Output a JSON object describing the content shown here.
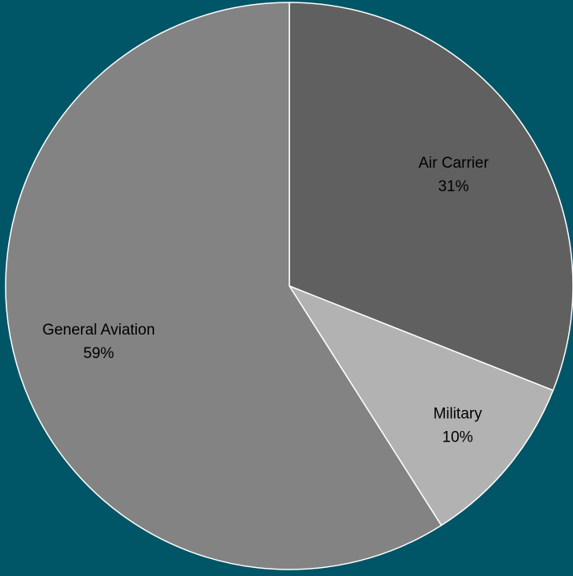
{
  "colors": {
    "background": "#005566",
    "slice_border": "#ffffff",
    "label_text": "#000000"
  },
  "chart_data": {
    "type": "pie",
    "title": "",
    "start_angle_deg": 0,
    "direction": "clockwise",
    "slices": [
      {
        "label": "Air Carrier",
        "value": 31,
        "value_label": "31%",
        "color": "#606060"
      },
      {
        "label": "Military",
        "value": 10,
        "value_label": "10%",
        "color": "#b2b2b2"
      },
      {
        "label": "General Aviation",
        "value": 59,
        "value_label": "59%",
        "color": "#838383"
      }
    ]
  }
}
